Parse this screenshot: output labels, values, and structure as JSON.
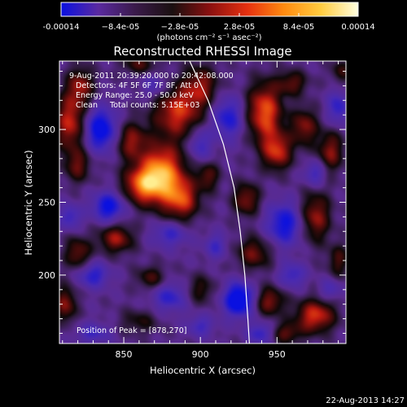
{
  "chart_data": {
    "type": "heatmap",
    "title": "Reconstructed RHESSI Image",
    "xlabel": "Heliocentric X (arcsec)",
    "ylabel": "Heliocentric Y (arcsec)",
    "xlim": [
      808,
      995
    ],
    "ylim": [
      153,
      347
    ],
    "x_ticks": [
      850,
      900,
      950
    ],
    "y_ticks": [
      200,
      250,
      300
    ],
    "grid": false,
    "colorbar": {
      "position": "top",
      "range": [
        -0.00014,
        0.00014
      ],
      "tick_values": [
        -0.00014,
        -8.4e-05,
        -2.8e-05,
        2.8e-05,
        8.4e-05,
        0.00014
      ],
      "tick_labels": [
        "-0.00014",
        "−8.4e-05",
        "−2.8e-05",
        "2.8e-05",
        "8.4e-05",
        "0.00014"
      ],
      "unit_label": "(photons cm⁻² s⁻¹ asec⁻²)",
      "colors": [
        "#0a10e0",
        "#5a2aa0",
        "#3a1a4a",
        "#1a1010",
        "#8a1010",
        "#e63010",
        "#ff8a10",
        "#ffcc40",
        "#ffffe0"
      ]
    },
    "annotations": {
      "date_range": "9-Aug-2011 20:39:20.000 to 20:42:08.000",
      "detectors": "Detectors: 4F 5F 6F 7F 8F, Att 0",
      "energy_range": "Energy Range: 25.0 - 50.0 keV",
      "clean_counts": "Clean     Total counts: 5.15E+03",
      "peak": "Position of Peak = [878,270]"
    },
    "peak_position": [
      878,
      270
    ],
    "limb_curve": [
      [
        893,
        347
      ],
      [
        905,
        320
      ],
      [
        915,
        290
      ],
      [
        922,
        260
      ],
      [
        926,
        230
      ],
      [
        929,
        200
      ],
      [
        931,
        170
      ],
      [
        932,
        153
      ]
    ],
    "blobs": [
      {
        "x": 875,
        "y": 270,
        "v": 1.0,
        "sx": 10,
        "sy": 14
      },
      {
        "x": 862,
        "y": 262,
        "v": 0.75,
        "sx": 9,
        "sy": 9
      },
      {
        "x": 888,
        "y": 252,
        "v": 0.7,
        "sx": 8,
        "sy": 10
      },
      {
        "x": 885,
        "y": 312,
        "v": 0.72,
        "sx": 11,
        "sy": 12
      },
      {
        "x": 900,
        "y": 330,
        "v": 0.55,
        "sx": 8,
        "sy": 10
      },
      {
        "x": 855,
        "y": 292,
        "v": 0.55,
        "sx": 7,
        "sy": 9
      },
      {
        "x": 815,
        "y": 305,
        "v": 0.7,
        "sx": 7,
        "sy": 14
      },
      {
        "x": 820,
        "y": 275,
        "v": 0.45,
        "sx": 6,
        "sy": 8
      },
      {
        "x": 822,
        "y": 330,
        "v": 0.55,
        "sx": 6,
        "sy": 9
      },
      {
        "x": 860,
        "y": 345,
        "v": 0.4,
        "sx": 8,
        "sy": 5
      },
      {
        "x": 845,
        "y": 225,
        "v": 0.6,
        "sx": 8,
        "sy": 7
      },
      {
        "x": 868,
        "y": 198,
        "v": 0.4,
        "sx": 7,
        "sy": 6
      },
      {
        "x": 820,
        "y": 215,
        "v": 0.5,
        "sx": 6,
        "sy": 8
      },
      {
        "x": 812,
        "y": 180,
        "v": 0.55,
        "sx": 5,
        "sy": 9
      },
      {
        "x": 860,
        "y": 168,
        "v": 0.3,
        "sx": 9,
        "sy": 6
      },
      {
        "x": 900,
        "y": 190,
        "v": 0.35,
        "sx": 7,
        "sy": 7
      },
      {
        "x": 942,
        "y": 312,
        "v": 0.85,
        "sx": 8,
        "sy": 14
      },
      {
        "x": 950,
        "y": 285,
        "v": 0.7,
        "sx": 7,
        "sy": 9
      },
      {
        "x": 968,
        "y": 302,
        "v": 0.55,
        "sx": 6,
        "sy": 9
      },
      {
        "x": 960,
        "y": 332,
        "v": 0.45,
        "sx": 7,
        "sy": 6
      },
      {
        "x": 930,
        "y": 252,
        "v": 0.55,
        "sx": 6,
        "sy": 8
      },
      {
        "x": 905,
        "y": 268,
        "v": 0.45,
        "sx": 5,
        "sy": 7
      },
      {
        "x": 935,
        "y": 215,
        "v": 0.5,
        "sx": 8,
        "sy": 8
      },
      {
        "x": 975,
        "y": 240,
        "v": 0.6,
        "sx": 7,
        "sy": 12
      },
      {
        "x": 985,
        "y": 285,
        "v": 0.55,
        "sx": 6,
        "sy": 10
      },
      {
        "x": 990,
        "y": 210,
        "v": 0.4,
        "sx": 5,
        "sy": 8
      },
      {
        "x": 975,
        "y": 172,
        "v": 0.75,
        "sx": 9,
        "sy": 8
      },
      {
        "x": 945,
        "y": 182,
        "v": 0.55,
        "sx": 7,
        "sy": 7
      },
      {
        "x": 955,
        "y": 160,
        "v": 0.45,
        "sx": 8,
        "sy": 5
      },
      {
        "x": 992,
        "y": 340,
        "v": 0.35,
        "sx": 5,
        "sy": 6
      },
      {
        "x": 835,
        "y": 300,
        "v": -0.85,
        "sx": 7,
        "sy": 10
      },
      {
        "x": 840,
        "y": 247,
        "v": -0.75,
        "sx": 7,
        "sy": 7
      },
      {
        "x": 880,
        "y": 228,
        "v": -0.45,
        "sx": 8,
        "sy": 6
      },
      {
        "x": 918,
        "y": 308,
        "v": -0.6,
        "sx": 7,
        "sy": 10
      },
      {
        "x": 900,
        "y": 290,
        "v": -0.45,
        "sx": 5,
        "sy": 8
      },
      {
        "x": 925,
        "y": 183,
        "v": -0.95,
        "sx": 7,
        "sy": 8
      },
      {
        "x": 940,
        "y": 160,
        "v": -0.55,
        "sx": 6,
        "sy": 5
      },
      {
        "x": 955,
        "y": 235,
        "v": -0.7,
        "sx": 8,
        "sy": 10
      },
      {
        "x": 990,
        "y": 315,
        "v": -0.5,
        "sx": 5,
        "sy": 8
      },
      {
        "x": 975,
        "y": 270,
        "v": -0.45,
        "sx": 5,
        "sy": 6
      },
      {
        "x": 960,
        "y": 200,
        "v": -0.45,
        "sx": 6,
        "sy": 6
      },
      {
        "x": 830,
        "y": 200,
        "v": -0.55,
        "sx": 7,
        "sy": 6
      },
      {
        "x": 880,
        "y": 185,
        "v": -0.5,
        "sx": 8,
        "sy": 7
      },
      {
        "x": 815,
        "y": 240,
        "v": -0.45,
        "sx": 5,
        "sy": 6
      },
      {
        "x": 830,
        "y": 160,
        "v": -0.4,
        "sx": 8,
        "sy": 5
      },
      {
        "x": 900,
        "y": 165,
        "v": -0.4,
        "sx": 6,
        "sy": 5
      },
      {
        "x": 870,
        "y": 330,
        "v": -0.35,
        "sx": 6,
        "sy": 6
      },
      {
        "x": 910,
        "y": 220,
        "v": -0.4,
        "sx": 5,
        "sy": 6
      },
      {
        "x": 985,
        "y": 190,
        "v": -0.35,
        "sx": 5,
        "sy": 5
      }
    ]
  },
  "footer": {
    "timestamp": "22-Aug-2013 14:27"
  }
}
